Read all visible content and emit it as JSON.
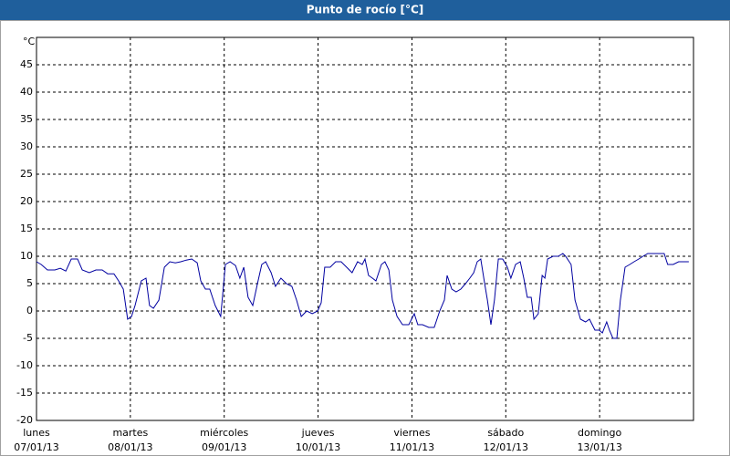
{
  "chart_data": {
    "type": "line",
    "title": "Punto de rocío [°C]",
    "y_label": "°C",
    "xlim": [
      0,
      168
    ],
    "xticks": [
      {
        "value": 0,
        "label": "lunes",
        "sublabel": "07/01/13"
      },
      {
        "value": 24,
        "label": "martes",
        "sublabel": "08/01/13"
      },
      {
        "value": 48,
        "label": "miércoles",
        "sublabel": "09/01/13"
      },
      {
        "value": 72,
        "label": "jueves",
        "sublabel": "10/01/13"
      },
      {
        "value": 96,
        "label": "viernes",
        "sublabel": "11/01/13"
      },
      {
        "value": 120,
        "label": "sábado",
        "sublabel": "12/01/13"
      },
      {
        "value": 144,
        "label": "domingo",
        "sublabel": "13/01/13"
      }
    ],
    "ylim": [
      -20,
      50
    ],
    "yticks": [
      -20,
      -15,
      -10,
      -5,
      0,
      5,
      10,
      15,
      20,
      25,
      30,
      35,
      40,
      45
    ],
    "grid": true,
    "series": [
      {
        "color": "#0000a0",
        "x": [
          0,
          1.2,
          2.8,
          4.7,
          6.1,
          7.5,
          8.9,
          10.5,
          11.7,
          13.5,
          15.2,
          16.8,
          18.2,
          19.8,
          21,
          22.2,
          23.3,
          24.3,
          25.2,
          26.8,
          28,
          28.9,
          29.9,
          31.3,
          32.7,
          34.1,
          35.5,
          36.9,
          38.3,
          39.7,
          41.1,
          42,
          43.2,
          44.3,
          45.7,
          47.1,
          48.3,
          49.5,
          50.9,
          52,
          53,
          54.1,
          55.3,
          56.5,
          57.6,
          58.6,
          60,
          61.1,
          62.5,
          63.9,
          65.3,
          66.5,
          67.7,
          69.1,
          70.5,
          71.9,
          72.8,
          73.7,
          75.1,
          76.5,
          77.9,
          79.3,
          80.7,
          82.1,
          83.3,
          84,
          84.9,
          85.9,
          86.8,
          88.2,
          89.1,
          90.1,
          91,
          92.2,
          93.6,
          95.2,
          96.6,
          97.5,
          98.7,
          100.3,
          101.7,
          103.1,
          104.3,
          105,
          106.2,
          107.3,
          108.5,
          109.7,
          110.8,
          111.8,
          112.7,
          113.6,
          114.6,
          115.3,
          116.2,
          117.1,
          118.1,
          119.2,
          120.4,
          121.3,
          122.5,
          123.7,
          124.6,
          125.5,
          126.5,
          127.2,
          128.3,
          129.3,
          130,
          130.7,
          132.1,
          133.4,
          134.6,
          135.3,
          136.7,
          137.7,
          139.1,
          140.4,
          141.4,
          142.8,
          143.9,
          144.7,
          145.8,
          146.5,
          147.4,
          148.4,
          149.3,
          150.5,
          151.7,
          152.8,
          154,
          155.1,
          156.3,
          158.6,
          160.5,
          161.4,
          162.8,
          164.2,
          165.6,
          166.8
        ],
        "values": [
          9,
          8.5,
          7.5,
          7.5,
          7.8,
          7.3,
          9.5,
          9.5,
          7.5,
          7,
          7.5,
          7.5,
          6.8,
          6.8,
          5.5,
          4,
          -1.5,
          -1,
          1,
          5.5,
          6,
          1,
          0.5,
          2,
          8,
          9,
          8.8,
          9,
          9.3,
          9.5,
          8.8,
          5.5,
          4,
          4,
          1,
          -1,
          8.5,
          9,
          8.3,
          6,
          8,
          2.5,
          1,
          5,
          8.5,
          9,
          7,
          4.5,
          6,
          5,
          4.5,
          2,
          -1,
          0,
          -0.5,
          0,
          1.5,
          8,
          8,
          9,
          9,
          8,
          7,
          9,
          8.5,
          9.5,
          6.5,
          6,
          5.5,
          8.5,
          9,
          7.5,
          2,
          -1,
          -2.5,
          -2.5,
          -0.5,
          -2.5,
          -2.5,
          -3,
          -3,
          0,
          2,
          6.5,
          4,
          3.5,
          4,
          5,
          6,
          7,
          9,
          9.5,
          5,
          2,
          -2.5,
          2,
          9.5,
          9.5,
          8,
          6,
          8.5,
          9,
          6,
          2.5,
          2.5,
          -1.5,
          -0.5,
          6.5,
          6,
          9.5,
          10,
          10,
          10.5,
          10,
          8.5,
          2,
          -1.5,
          -2,
          -1.5,
          -3.5,
          -3.5,
          -4,
          -2,
          -3.5,
          -5,
          -5,
          2,
          8,
          8.5,
          9,
          9.5,
          10,
          10.5,
          10.5,
          10.5,
          8.5,
          8.5,
          9,
          9,
          9
        ]
      }
    ]
  }
}
